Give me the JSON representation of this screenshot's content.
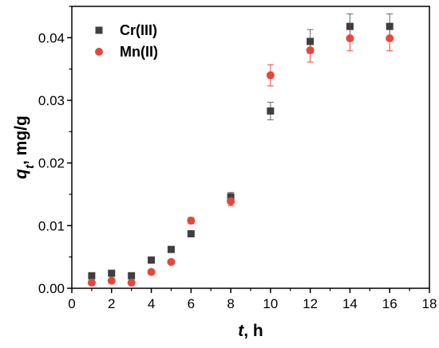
{
  "chart_data": {
    "type": "scatter",
    "xlabel": {
      "var": "t",
      "rest": ", h"
    },
    "ylabel": {
      "var": "q",
      "sub": "t",
      "rest": ",  mg/g"
    },
    "xlim": [
      0,
      18
    ],
    "ylim": [
      0,
      0.045
    ],
    "xticks": [
      "0",
      "2",
      "4",
      "6",
      "8",
      "10",
      "12",
      "14",
      "16",
      "18"
    ],
    "yticks": [
      "0.00",
      "0.01",
      "0.02",
      "0.03",
      "0.04"
    ],
    "legend_position": "top-left",
    "series": [
      {
        "name": "Cr(III)",
        "marker": "square",
        "color": "#3f3f3f",
        "points": [
          {
            "x": 1,
            "y": 0.002,
            "err": 0
          },
          {
            "x": 2,
            "y": 0.0024,
            "err": 0
          },
          {
            "x": 3,
            "y": 0.002,
            "err": 0
          },
          {
            "x": 4,
            "y": 0.0045,
            "err": 0
          },
          {
            "x": 5,
            "y": 0.0062,
            "err": 0
          },
          {
            "x": 6,
            "y": 0.0087,
            "err": 0
          },
          {
            "x": 8,
            "y": 0.0146,
            "err": 0.0007
          },
          {
            "x": 10,
            "y": 0.0283,
            "err": 0.0014
          },
          {
            "x": 12,
            "y": 0.0394,
            "err": 0.0019
          },
          {
            "x": 14,
            "y": 0.0418,
            "err": 0.002
          },
          {
            "x": 16,
            "y": 0.0418,
            "err": 0.002
          }
        ]
      },
      {
        "name": "Mn(II)",
        "marker": "circle",
        "color": "#e8453c",
        "points": [
          {
            "x": 1,
            "y": 0.0009,
            "err": 0
          },
          {
            "x": 2,
            "y": 0.0012,
            "err": 0
          },
          {
            "x": 3,
            "y": 0.0009,
            "err": 0
          },
          {
            "x": 4,
            "y": 0.0026,
            "err": 0
          },
          {
            "x": 5,
            "y": 0.0042,
            "err": 0
          },
          {
            "x": 6,
            "y": 0.0108,
            "err": 0.0005
          },
          {
            "x": 8,
            "y": 0.0139,
            "err": 0.0007
          },
          {
            "x": 10,
            "y": 0.034,
            "err": 0.0017
          },
          {
            "x": 12,
            "y": 0.038,
            "err": 0.0019
          },
          {
            "x": 14,
            "y": 0.0399,
            "err": 0.002
          },
          {
            "x": 16,
            "y": 0.0399,
            "err": 0.002
          }
        ]
      }
    ]
  }
}
